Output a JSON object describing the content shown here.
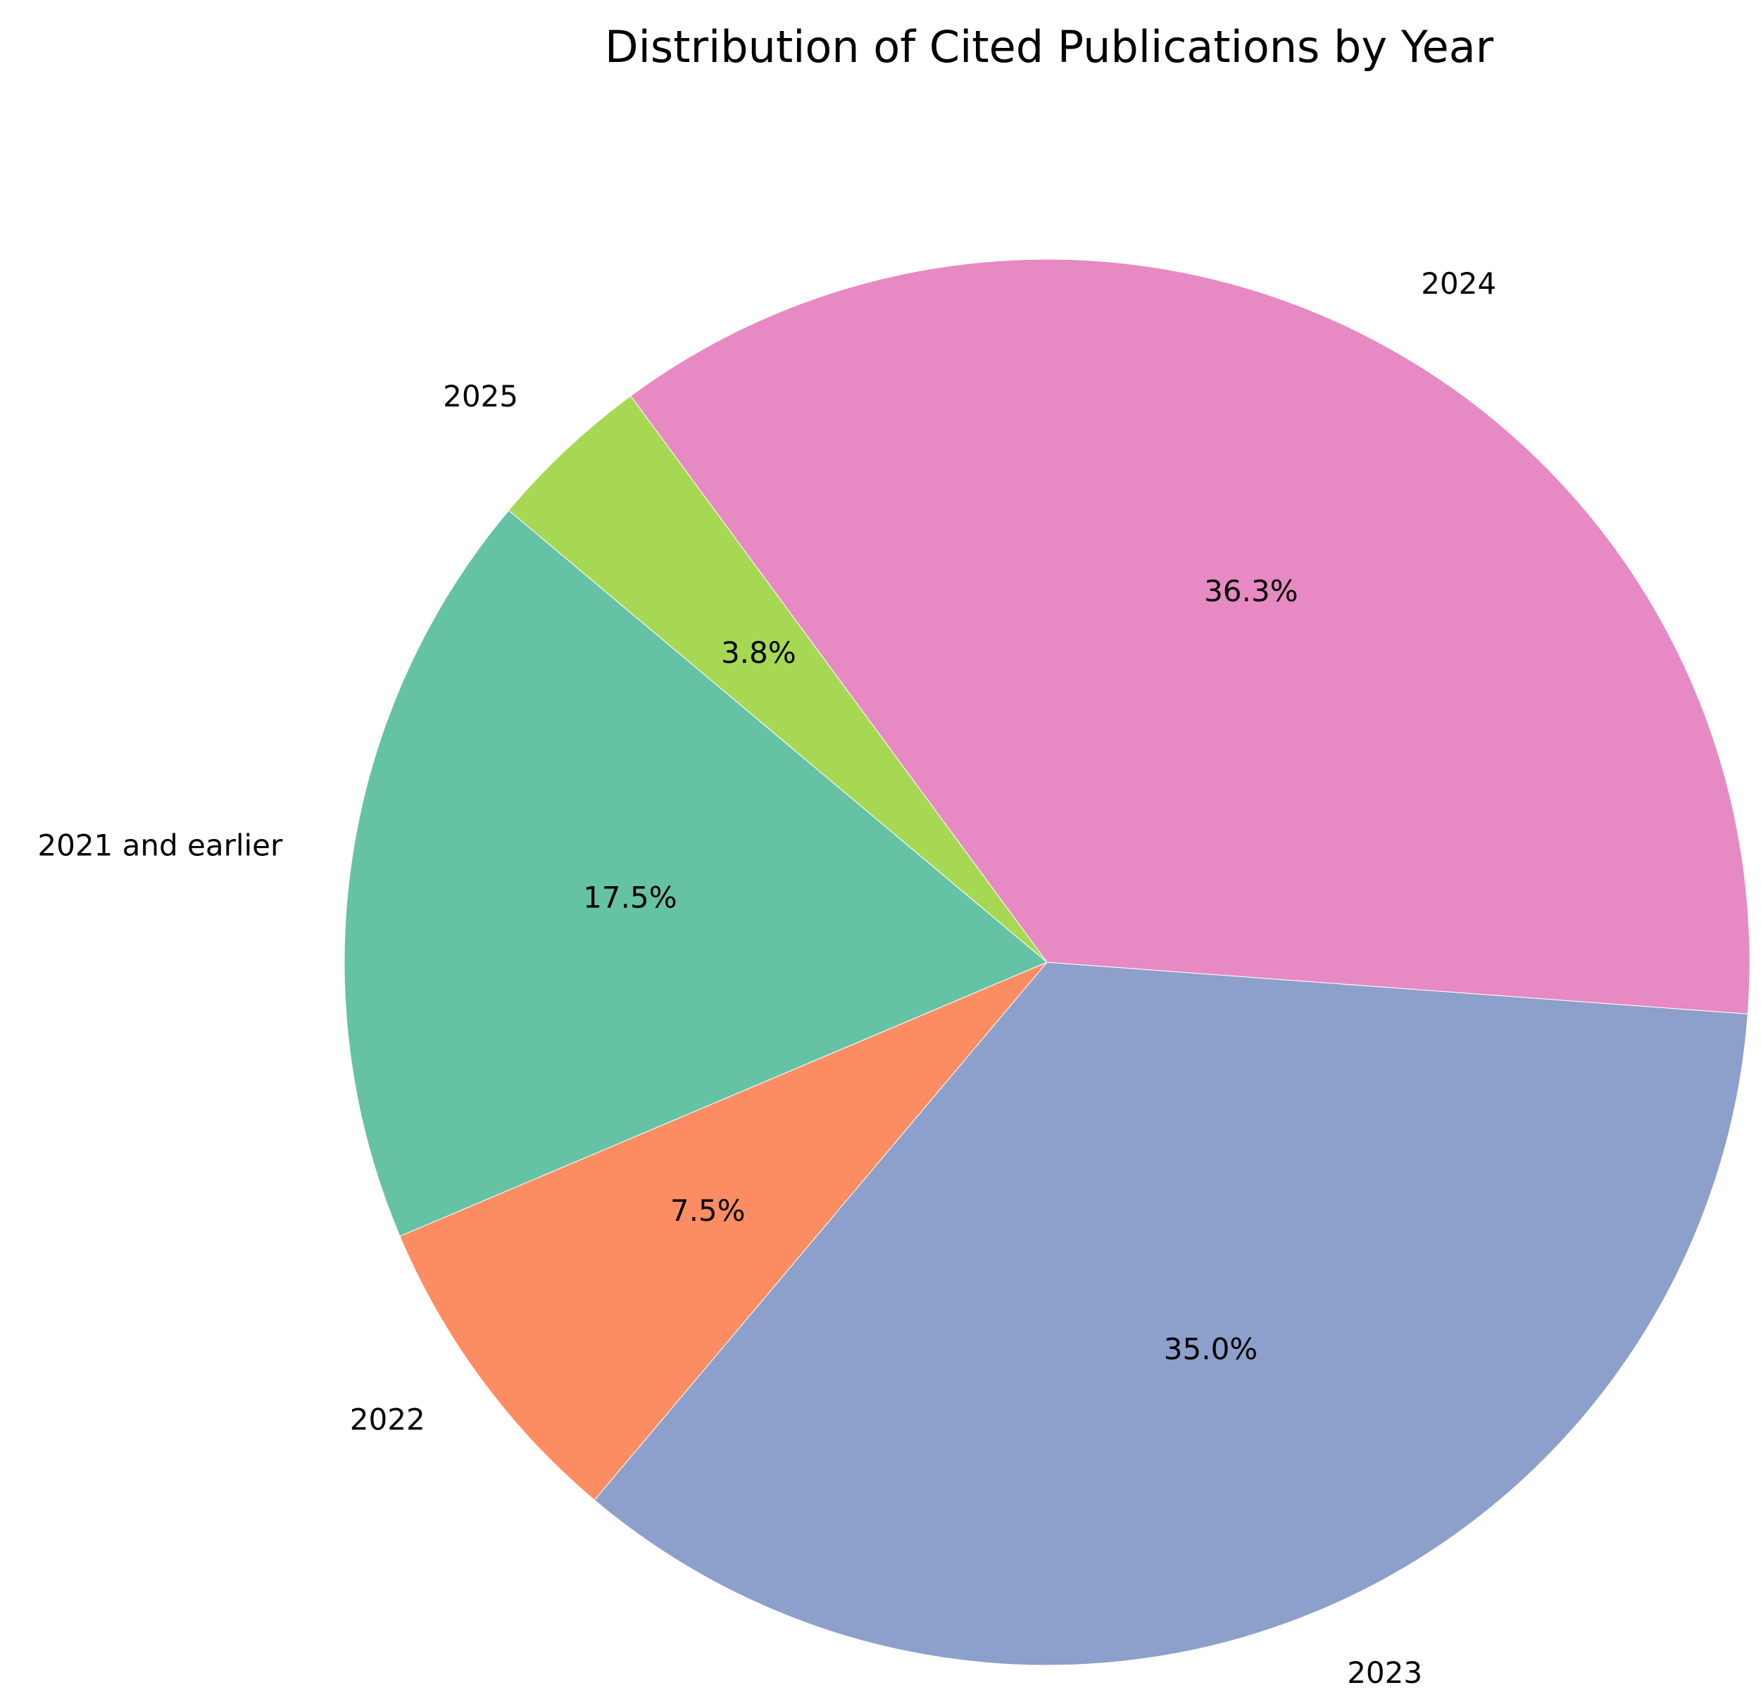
{
  "chart_data": {
    "type": "pie",
    "title": "Distribution of Cited Publications by Year",
    "slices": [
      {
        "label": "2021 and earlier",
        "value": 17.5,
        "pct_label": "17.5%",
        "color": "#66c2a5"
      },
      {
        "label": "2022",
        "value": 7.5,
        "pct_label": "7.5%",
        "color": "#fc8d62"
      },
      {
        "label": "2023",
        "value": 35.0,
        "pct_label": "35.0%",
        "color": "#8da0cb"
      },
      {
        "label": "2024",
        "value": 36.3,
        "pct_label": "36.3%",
        "color": "#e78ac3"
      },
      {
        "label": "2025",
        "value": 3.8,
        "pct_label": "3.8%",
        "color": "#a6d854"
      }
    ],
    "start_angle_deg": 140,
    "direction": "counterclockwise"
  }
}
